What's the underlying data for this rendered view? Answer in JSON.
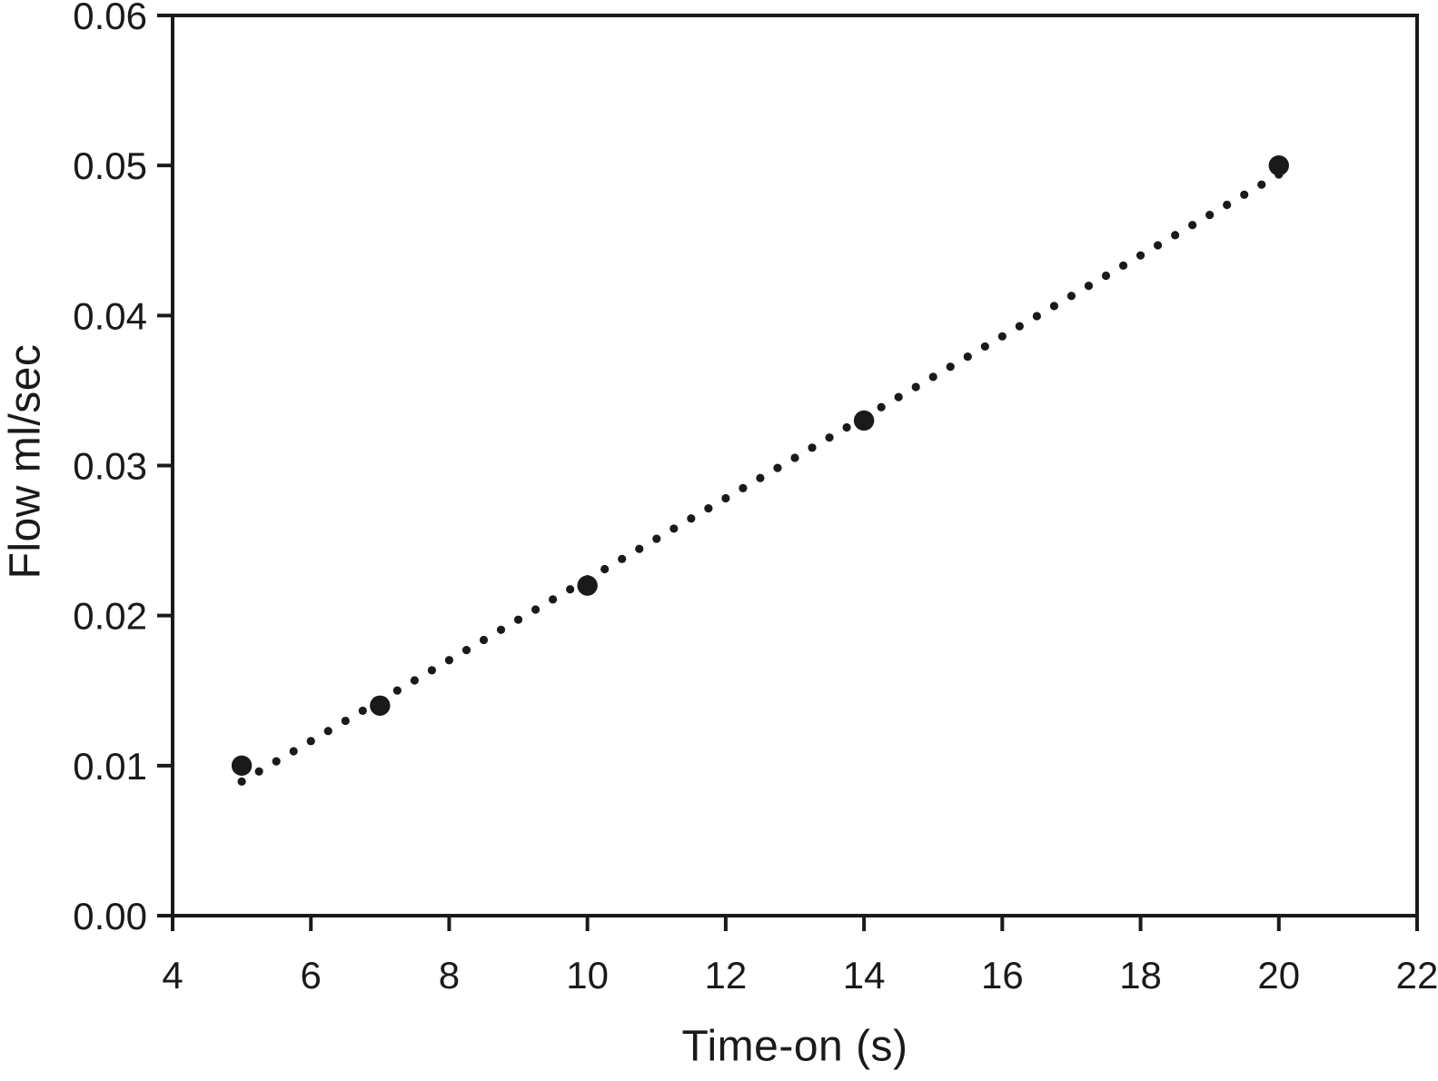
{
  "chart_data": {
    "type": "scatter",
    "title": "",
    "xlabel": "Time-on (s)",
    "ylabel": "Flow ml/sec",
    "xlim": [
      4,
      22
    ],
    "ylim": [
      0,
      0.06
    ],
    "grid": false,
    "legend": null,
    "frame": "full-box",
    "x_ticks": [
      4,
      6,
      8,
      10,
      12,
      14,
      16,
      18,
      20,
      22
    ],
    "x_tick_labels": [
      "4",
      "6",
      "8",
      "10",
      "12",
      "14",
      "16",
      "18",
      "20",
      "22"
    ],
    "y_ticks": [
      0.0,
      0.01,
      0.02,
      0.03,
      0.04,
      0.05,
      0.06
    ],
    "y_tick_labels": [
      "0.00",
      "0.01",
      "0.02",
      "0.03",
      "0.04",
      "0.05",
      "0.06"
    ],
    "points": [
      {
        "x": 5,
        "y": 0.01
      },
      {
        "x": 7,
        "y": 0.014
      },
      {
        "x": 10,
        "y": 0.022
      },
      {
        "x": 14,
        "y": 0.033
      },
      {
        "x": 20,
        "y": 0.05
      }
    ],
    "trendline": {
      "style": "dotted",
      "slope": 0.0026975,
      "intercept": -0.00455,
      "x_start": 5,
      "x_end": 20,
      "dot_interval": 0.25
    },
    "colors": {
      "ink": "#1a1a1a",
      "background": "#ffffff"
    }
  }
}
